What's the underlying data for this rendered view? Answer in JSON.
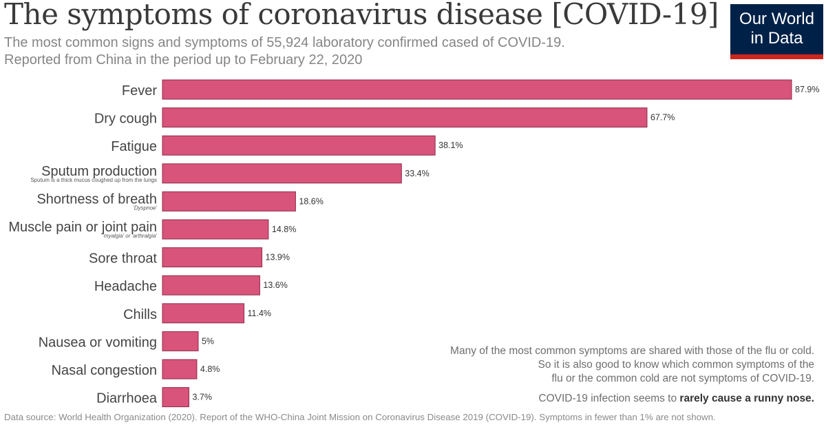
{
  "header": {
    "title": "The symptoms of coronavirus disease [COVID-19]",
    "subtitle_line1": "The most common signs and symptoms of 55,924 laboratory confirmed cased of COVID-19.",
    "subtitle_line2": "Reported from China in the period up to February 22, 2020"
  },
  "logo": {
    "line1": "Our World",
    "line2": "in Data"
  },
  "colors": {
    "bar": "#d8547a",
    "bar_stroke": "#8e2a4b",
    "logo_bg": "#002147",
    "logo_accent": "#ce261e"
  },
  "chart_data": {
    "type": "bar",
    "orientation": "horizontal",
    "title": "The symptoms of coronavirus disease [COVID-19]",
    "unit": "%",
    "xlim": [
      0,
      87.9
    ],
    "categories": [
      "Fever",
      "Dry cough",
      "Fatigue",
      "Sputum production",
      "Shortness of breath",
      "Muscle pain or joint pain",
      "Sore throat",
      "Headache",
      "Chills",
      "Nausea or vomiting",
      "Nasal congestion",
      "Diarrhoea"
    ],
    "category_notes": [
      "",
      "",
      "",
      "Sputum is a thick mucus coughed up from the lungs",
      "'Dyspnoe'",
      "'myalgia' or 'arthralgia'",
      "",
      "",
      "",
      "",
      "",
      ""
    ],
    "values": [
      87.9,
      67.7,
      38.1,
      33.4,
      18.6,
      14.8,
      13.9,
      13.6,
      11.4,
      5,
      4.8,
      3.7
    ],
    "value_labels": [
      "87.9%",
      "67.7%",
      "38.1%",
      "33.4%",
      "18.6%",
      "14.8%",
      "13.9%",
      "13.6%",
      "11.4%",
      "5%",
      "4.8%",
      "3.7%"
    ]
  },
  "note": {
    "line1": "Many of the most common symptoms are shared with those of the flu or cold.",
    "line2": "So it is also good to know which common symptoms of the",
    "line3": "flu or the common cold are not symptoms of COVID-19.",
    "runny_prefix": "COVID-19 infection seems to ",
    "runny_bold": "rarely cause a runny nose."
  },
  "source": "Data source: World Health Organization (2020). Report of the WHO-China Joint Mission on Coronavirus Disease 2019 (COVID-19). Symptoms in fewer than 1% are not shown."
}
